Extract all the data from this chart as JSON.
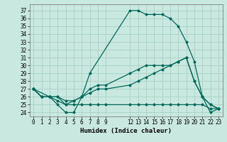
{
  "xlabel": "Humidex (Indice chaleur)",
  "bg_color": "#c8e8e0",
  "grid_color": "#a8d0c8",
  "line_color": "#006858",
  "xlim": [
    -0.5,
    23.5
  ],
  "ylim": [
    23.5,
    37.8
  ],
  "yticks": [
    24,
    25,
    26,
    27,
    28,
    29,
    30,
    31,
    32,
    33,
    34,
    35,
    36,
    37
  ],
  "xticks": [
    0,
    1,
    2,
    3,
    4,
    5,
    6,
    7,
    8,
    9,
    12,
    13,
    14,
    15,
    16,
    17,
    18,
    19,
    20,
    21,
    22,
    23
  ],
  "series": [
    {
      "x": [
        0,
        1,
        2,
        3,
        4,
        5,
        6,
        7,
        12,
        13,
        14,
        15,
        16,
        17,
        18,
        19,
        20,
        21,
        22,
        23
      ],
      "y": [
        27,
        26,
        26,
        25,
        24,
        24,
        26,
        29,
        37,
        37,
        36.5,
        36.5,
        36.5,
        36,
        35,
        33,
        30.5,
        26,
        25,
        24.5
      ]
    },
    {
      "x": [
        0,
        1,
        2,
        3,
        4,
        5,
        6,
        7,
        8,
        9,
        12,
        13,
        14,
        15,
        16,
        17,
        18,
        19,
        20,
        21,
        22,
        23
      ],
      "y": [
        27,
        26,
        26,
        26,
        25.5,
        25.5,
        26,
        26.5,
        27,
        27,
        27.5,
        28,
        28.5,
        29,
        29.5,
        30,
        30.5,
        31,
        28,
        26,
        24,
        24.5
      ]
    },
    {
      "x": [
        0,
        1,
        2,
        3,
        4,
        5,
        6,
        7,
        8,
        9,
        12,
        13,
        14,
        15,
        16,
        17,
        18,
        19,
        20,
        21,
        22,
        23
      ],
      "y": [
        27,
        26,
        26,
        26,
        25,
        25,
        25,
        25,
        25,
        25,
        25,
        25,
        25,
        25,
        25,
        25,
        25,
        25,
        25,
        25,
        24.5,
        24.5
      ]
    },
    {
      "x": [
        0,
        2,
        3,
        4,
        5,
        6,
        7,
        8,
        9,
        12,
        13,
        14,
        15,
        16,
        17,
        18,
        19,
        20,
        21,
        22,
        23
      ],
      "y": [
        27,
        26,
        25.5,
        25,
        25.5,
        26,
        27,
        27.5,
        27.5,
        29,
        29.5,
        30,
        30,
        30,
        30,
        30.5,
        31,
        28,
        26,
        25,
        24.5
      ]
    }
  ]
}
